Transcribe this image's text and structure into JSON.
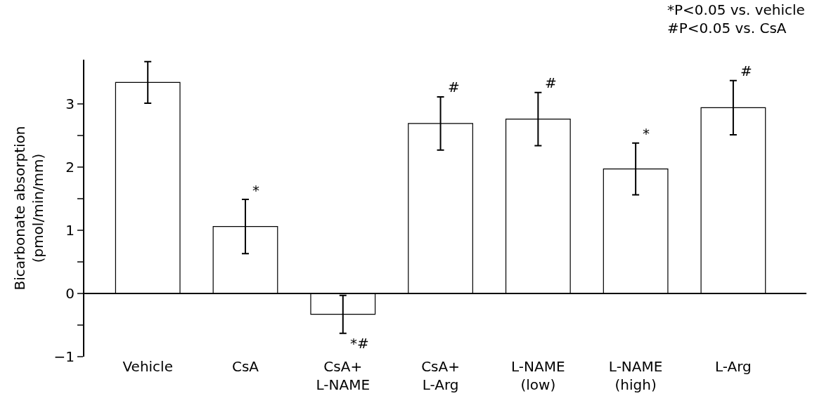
{
  "chart_data": {
    "type": "bar",
    "ylabel": "Bicarbonate absorption\n(pmol/min/mm)",
    "categories": [
      "Vehicle",
      "CsA",
      "CsA+\nL-NAME",
      "CsA+\nL-Arg",
      "L-NAME\n(low)",
      "L-NAME\n(high)",
      "L-Arg"
    ],
    "values": [
      3.34,
      1.06,
      -0.33,
      2.69,
      2.76,
      1.97,
      2.94
    ],
    "errors": [
      0.33,
      0.43,
      0.3,
      0.42,
      0.42,
      0.41,
      0.43
    ],
    "color": "#ffffff",
    "ylim": [
      -1,
      3.7
    ],
    "yticks": [
      {
        "value": -1,
        "label": "−1"
      },
      {
        "value": -0.5,
        "label": null
      },
      0,
      {
        "value": 0.5,
        "label": null
      },
      1,
      {
        "value": 1.5,
        "label": null
      },
      2,
      {
        "value": 2.5,
        "label": null
      },
      3
    ],
    "grid": false,
    "ref_lines": [
      {
        "axis": "y",
        "value": 0,
        "color": "#000000"
      }
    ],
    "annotations": [
      {
        "text": "*",
        "x": "CsA",
        "y": 1.48
      },
      {
        "text": "*#",
        "x": "CsA+\nL-NAME",
        "y": -0.63
      },
      {
        "text": "#",
        "x": "CsA+\nL-Arg",
        "y": 3.11
      },
      {
        "text": "#",
        "x": "L-NAME\n(low)",
        "y": 3.18
      },
      {
        "text": "*",
        "x": "L-NAME\n(high)",
        "y": 2.38
      },
      {
        "text": "#",
        "x": "L-Arg",
        "y": 3.37
      },
      "*P<0.05 vs. vehicle\n#P<0.05 vs. CsA"
    ]
  }
}
